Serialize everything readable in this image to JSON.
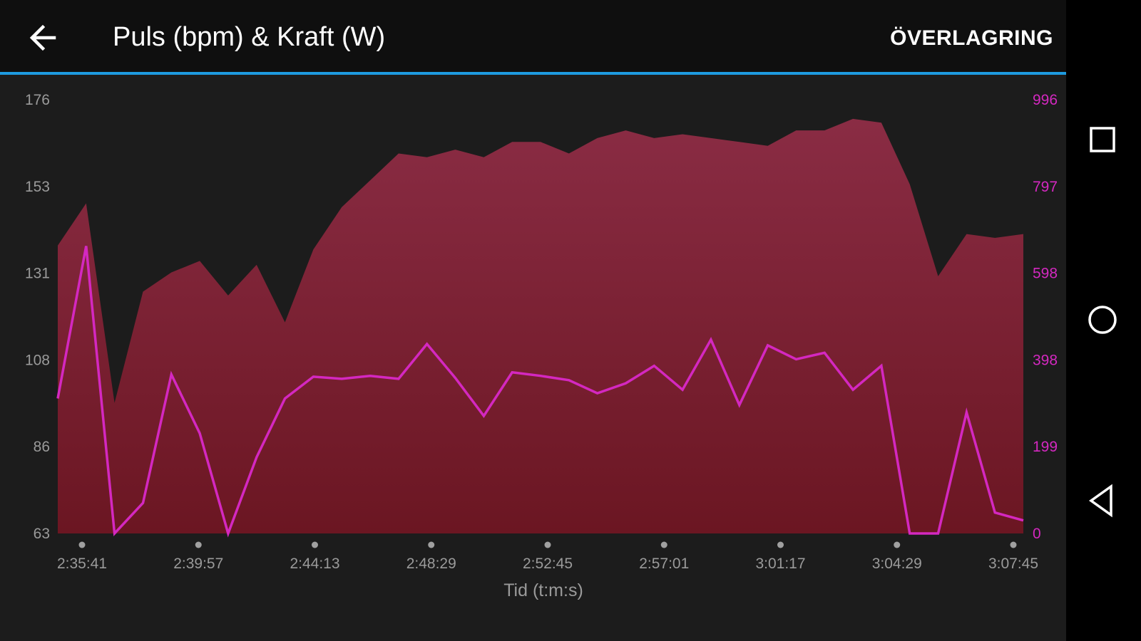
{
  "app_bar": {
    "back_icon": "arrow-left-icon",
    "title": "Puls (bpm) & Kraft (W)",
    "overlay_label": "ÖVERLAGRING",
    "accent_color": "#1e9be0"
  },
  "nav_bar": {
    "recents_icon": "square-icon",
    "home_icon": "circle-icon",
    "back_icon": "triangle-back-icon"
  },
  "chart_data": {
    "type": "area",
    "xlabel": "Tid (t:m:s)",
    "x_tick_labels": [
      "2:35:41",
      "2:39:57",
      "2:44:13",
      "2:48:29",
      "2:52:45",
      "2:57:01",
      "3:01:17",
      "3:04:29",
      "3:07:45"
    ],
    "left_axis": {
      "ticks": [
        "176",
        "153",
        "131",
        "108",
        "86",
        "63"
      ],
      "ylim": [
        63,
        176
      ],
      "color": "#9a9a9a"
    },
    "right_axis": {
      "ticks": [
        "996",
        "797",
        "598",
        "398",
        "199",
        "0"
      ],
      "ylim": [
        0,
        996
      ],
      "color": "#d428c0"
    },
    "grid": false,
    "series": [
      {
        "type": "area",
        "axis": "left",
        "color": "#8a2a40",
        "values": [
          138,
          149,
          97,
          126,
          131,
          134,
          125,
          133,
          118,
          137,
          148,
          155,
          162,
          161,
          163,
          161,
          165,
          165,
          162,
          166,
          168,
          166,
          167,
          166,
          165,
          164,
          168,
          168,
          171,
          170,
          154,
          130,
          141,
          140,
          141
        ]
      },
      {
        "type": "line",
        "axis": "right",
        "color": "#d428c0",
        "values": [
          310,
          660,
          0,
          70,
          365,
          230,
          0,
          175,
          310,
          360,
          355,
          362,
          355,
          435,
          357,
          270,
          370,
          362,
          352,
          322,
          345,
          385,
          330,
          445,
          295,
          432,
          400,
          415,
          330,
          385,
          0,
          0,
          278,
          48,
          30
        ]
      }
    ]
  }
}
